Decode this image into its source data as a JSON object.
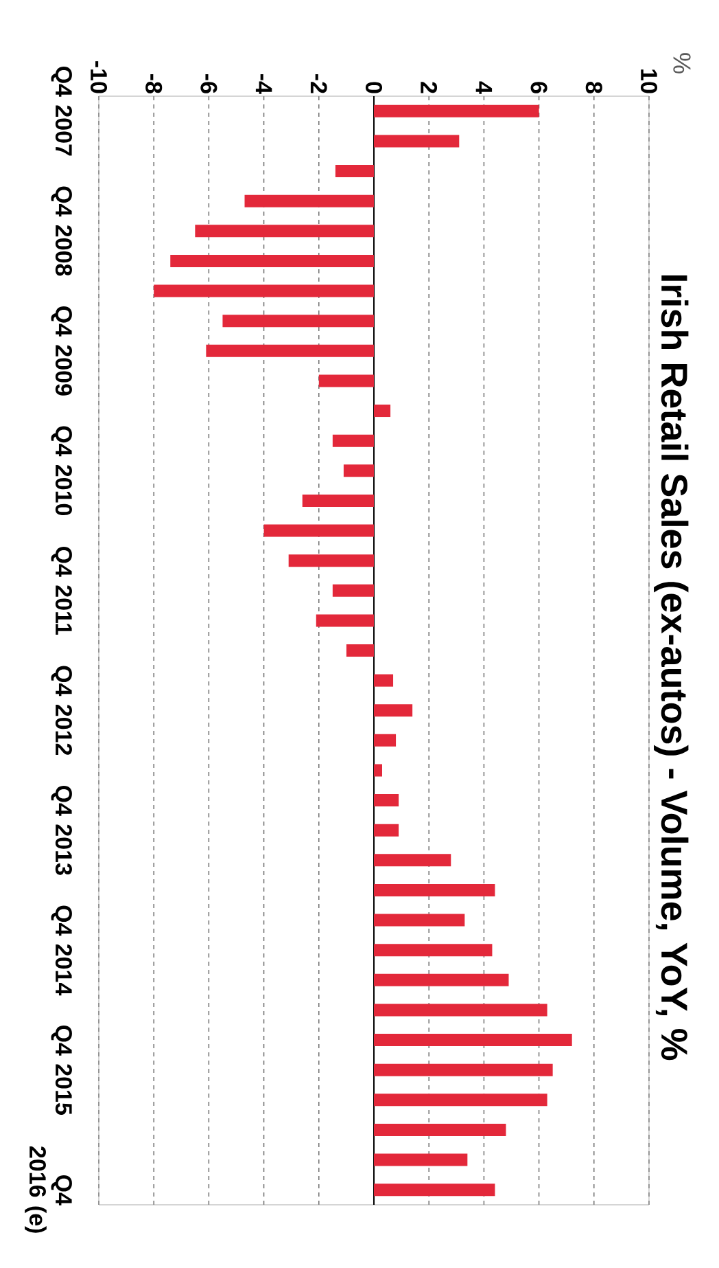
{
  "chart_data": {
    "type": "bar",
    "orientation": "horizontal",
    "title": "Irish Retail Sales (ex-autos) - Volume, YoY, %",
    "annotations": [
      "%"
    ],
    "categories": [
      "Q4 2007",
      null,
      null,
      null,
      "Q4 2008",
      null,
      null,
      null,
      "Q4 2009",
      null,
      null,
      null,
      "Q4 2010",
      null,
      null,
      null,
      "Q4 2011",
      null,
      null,
      null,
      "Q4 2012",
      null,
      null,
      null,
      "Q4 2013",
      null,
      null,
      null,
      "Q4 2014",
      null,
      null,
      null,
      "Q4 2015",
      null,
      null,
      null,
      "Q4 2016 (e)"
    ],
    "values": [
      6.0,
      3.1,
      -1.4,
      -4.7,
      -6.5,
      -7.4,
      -8.0,
      -5.5,
      -6.1,
      -2.0,
      0.6,
      -1.5,
      -1.1,
      -2.6,
      -4.0,
      -3.1,
      -1.5,
      -2.1,
      -1.0,
      0.7,
      1.4,
      0.8,
      0.3,
      0.9,
      0.9,
      2.8,
      4.4,
      3.3,
      4.3,
      4.9,
      6.3,
      7.2,
      6.5,
      6.3,
      4.8,
      3.4,
      4.4
    ],
    "color": "#e3283a",
    "xlim": [
      -10,
      10
    ],
    "xticks": [
      -10,
      -8,
      -6,
      -4,
      -2,
      0,
      2,
      4,
      6,
      8,
      10
    ],
    "grid": "x"
  }
}
